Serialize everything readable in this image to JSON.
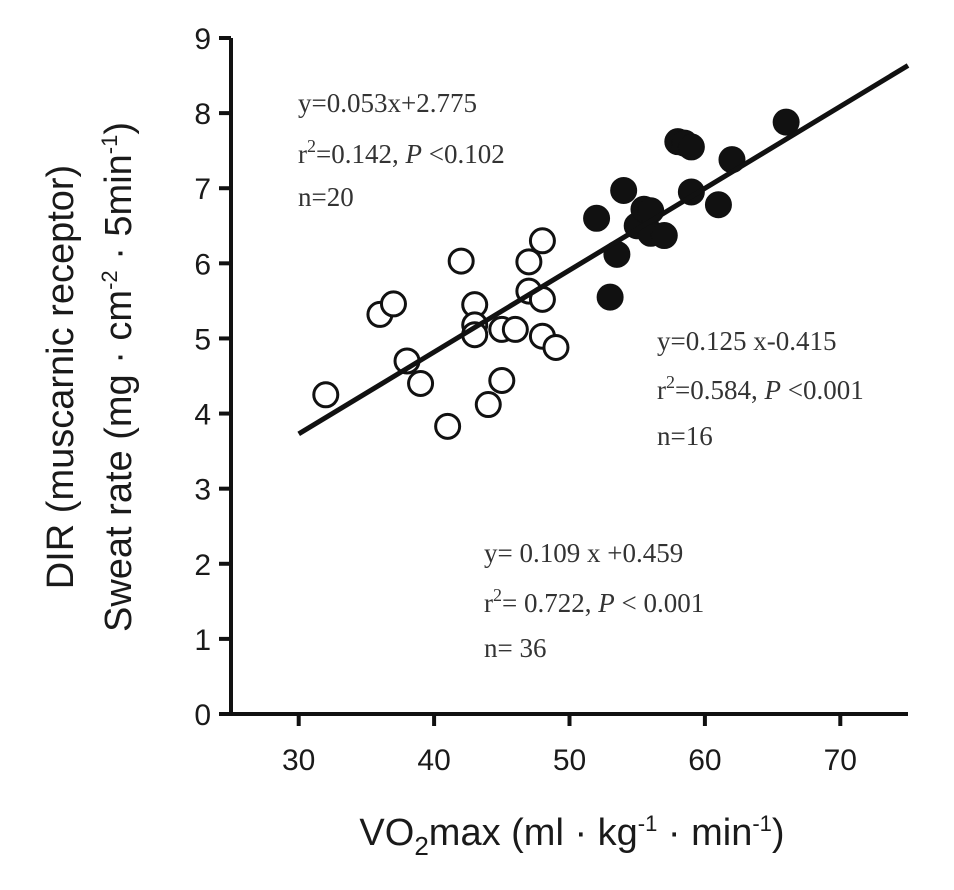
{
  "chart_data": {
    "type": "scatter",
    "xlabel": {
      "pre": "VO",
      "sub": "2",
      "mid": "max (ml · kg",
      "sup1": "-1",
      "mid2": " · min",
      "sup2": "-1",
      "post": ")"
    },
    "ylabel": {
      "line1": "DIR (muscarnic receptor)",
      "line2": {
        "pre": "Sweat  rate (mg · cm",
        "sup1": "-2",
        "mid": " · 5min",
        "sup2": "-1",
        "post": ")"
      }
    },
    "xlim": [
      25,
      75
    ],
    "ylim": [
      0,
      9
    ],
    "xticks": [
      30,
      40,
      50,
      60,
      70
    ],
    "yticks": [
      0,
      1,
      2,
      3,
      4,
      5,
      6,
      7,
      8,
      9
    ],
    "series": [
      {
        "name": "open",
        "marker": "open-circle",
        "x": [
          32,
          36,
          37,
          38,
          39,
          41,
          42,
          43,
          43,
          43,
          44,
          45,
          45,
          46,
          47,
          47,
          48,
          48,
          48,
          49
        ],
        "y": [
          4.25,
          5.32,
          5.46,
          4.7,
          4.4,
          3.83,
          6.03,
          5.45,
          5.18,
          5.05,
          4.12,
          4.44,
          5.12,
          5.12,
          6.02,
          5.63,
          6.3,
          5.52,
          5.03,
          4.88
        ]
      },
      {
        "name": "filled",
        "marker": "filled-circle",
        "x": [
          52,
          53,
          53.5,
          54,
          55,
          55.5,
          56,
          56,
          57,
          58,
          58.5,
          59,
          59,
          61,
          62,
          66
        ],
        "y": [
          6.6,
          5.55,
          6.12,
          6.97,
          6.5,
          6.72,
          6.4,
          6.7,
          6.37,
          7.62,
          7.6,
          7.55,
          6.95,
          6.78,
          7.38,
          7.88
        ]
      }
    ],
    "fit_line": {
      "slope": 0.109,
      "intercept": 0.459,
      "x_range": [
        30,
        75
      ]
    },
    "annotations": [
      {
        "id": "open",
        "eq": "y=0.053x+2.775",
        "r2_pre": "r",
        "r2_sup": "2",
        "r2_val": "=0.142, ",
        "p_label": "P",
        "p_val": " <0.102",
        "n": "n=20"
      },
      {
        "id": "filled",
        "eq": "y=0.125 x-0.415",
        "r2_pre": "r",
        "r2_sup": "2",
        "r2_val": "=0.584, ",
        "p_label": "P",
        "p_val": " <0.001",
        "n": "n=16"
      },
      {
        "id": "all",
        "eq": "y= 0.109 x +0.459",
        "r2_pre": "r",
        "r2_sup": "2",
        "r2_val": "= 0.722, ",
        "p_label": "P",
        "p_val": " < 0.001",
        "n": "n= 36"
      }
    ]
  }
}
